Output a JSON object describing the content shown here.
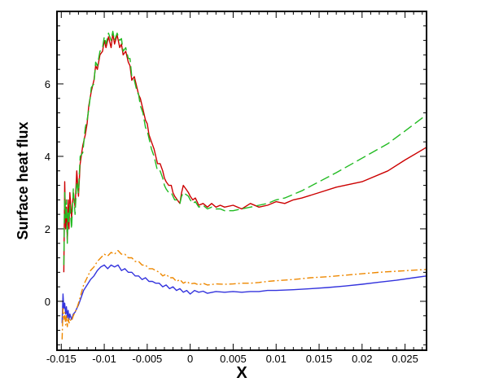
{
  "chart_data": {
    "type": "line",
    "title": "",
    "xlabel": "X",
    "ylabel": "Surface heat flux",
    "xlim": [
      -0.0155,
      0.0275
    ],
    "ylim": [
      -1.35,
      8.0
    ],
    "x_ticks": [
      -0.015,
      -0.01,
      -0.005,
      0,
      0.005,
      0.01,
      0.015,
      0.02,
      0.025
    ],
    "x_tick_labels": [
      "-0.015",
      "-0.01",
      "-0.005",
      "0",
      "0.005",
      "0.01",
      "0.015",
      "0.02",
      "0.025"
    ],
    "y_ticks": [
      0,
      2,
      4,
      6
    ],
    "y_tick_labels": [
      "0",
      "2",
      "4",
      "6"
    ],
    "grid": false,
    "legend": "none",
    "series": [
      {
        "color": "#cc0000",
        "dash": "solid",
        "x": [
          -0.0147,
          -0.0146,
          -0.0145,
          -0.0144,
          -0.0143,
          -0.0142,
          -0.0141,
          -0.014,
          -0.0138,
          -0.0136,
          -0.0134,
          -0.0132,
          -0.013,
          -0.0128,
          -0.0125,
          -0.0122,
          -0.012,
          -0.0118,
          -0.0115,
          -0.0112,
          -0.011,
          -0.0108,
          -0.0105,
          -0.0102,
          -0.01,
          -0.0098,
          -0.0095,
          -0.0092,
          -0.009,
          -0.0088,
          -0.0085,
          -0.0082,
          -0.008,
          -0.0078,
          -0.0075,
          -0.0072,
          -0.007,
          -0.0068,
          -0.0065,
          -0.0062,
          -0.006,
          -0.0058,
          -0.0055,
          -0.0052,
          -0.005,
          -0.0048,
          -0.0045,
          -0.0042,
          -0.004,
          -0.0038,
          -0.0035,
          -0.0032,
          -0.003,
          -0.0028,
          -0.0025,
          -0.0022,
          -0.002,
          -0.0018,
          -0.0015,
          -0.0012,
          -0.001,
          -0.0008,
          -0.0005,
          -0.0002,
          0,
          0.0003,
          0.0006,
          0.001,
          0.0015,
          0.002,
          0.0025,
          0.003,
          0.0035,
          0.004,
          0.005,
          0.006,
          0.007,
          0.008,
          0.009,
          0.01,
          0.011,
          0.012,
          0.013,
          0.015,
          0.017,
          0.02,
          0.023,
          0.025,
          0.0275
        ],
        "y": [
          0.8,
          3.3,
          2.0,
          2.6,
          1.7,
          2.8,
          2.0,
          3.0,
          2.3,
          3.0,
          2.6,
          3.6,
          2.9,
          3.8,
          4.3,
          4.6,
          4.9,
          5.4,
          5.8,
          6.1,
          6.5,
          6.4,
          6.8,
          6.9,
          7.2,
          7.0,
          7.3,
          7.0,
          7.4,
          7.1,
          7.35,
          7.0,
          7.1,
          6.8,
          6.9,
          6.6,
          6.5,
          6.1,
          6.2,
          5.9,
          5.7,
          5.6,
          5.3,
          5.0,
          4.9,
          4.6,
          4.4,
          4.2,
          4.0,
          3.8,
          3.8,
          3.6,
          3.4,
          3.3,
          3.2,
          3.2,
          3.0,
          2.9,
          2.8,
          2.7,
          3.0,
          3.2,
          3.1,
          3.0,
          2.9,
          2.8,
          2.85,
          2.65,
          2.7,
          2.6,
          2.7,
          2.6,
          2.65,
          2.6,
          2.65,
          2.55,
          2.7,
          2.6,
          2.65,
          2.75,
          2.7,
          2.8,
          2.85,
          3.0,
          3.15,
          3.3,
          3.6,
          3.9,
          4.25
        ]
      },
      {
        "color": "#22bb22",
        "dash": "long-dash",
        "x": [
          -0.0147,
          -0.0146,
          -0.0145,
          -0.0144,
          -0.0143,
          -0.0142,
          -0.0141,
          -0.014,
          -0.0138,
          -0.0136,
          -0.0134,
          -0.0132,
          -0.013,
          -0.0128,
          -0.0125,
          -0.0122,
          -0.012,
          -0.0118,
          -0.0115,
          -0.0112,
          -0.011,
          -0.0108,
          -0.0105,
          -0.0102,
          -0.01,
          -0.0098,
          -0.0095,
          -0.0092,
          -0.009,
          -0.0088,
          -0.0085,
          -0.0082,
          -0.008,
          -0.0078,
          -0.0075,
          -0.0072,
          -0.007,
          -0.0068,
          -0.0065,
          -0.0062,
          -0.006,
          -0.0058,
          -0.0055,
          -0.0052,
          -0.005,
          -0.0048,
          -0.0045,
          -0.0042,
          -0.004,
          -0.0038,
          -0.0035,
          -0.0032,
          -0.003,
          -0.0028,
          -0.0025,
          -0.0022,
          -0.002,
          -0.0018,
          -0.0015,
          -0.0012,
          -0.001,
          -0.0008,
          -0.0005,
          -0.0002,
          0,
          0.0003,
          0.0006,
          0.001,
          0.0015,
          0.002,
          0.0025,
          0.003,
          0.0035,
          0.004,
          0.005,
          0.006,
          0.007,
          0.008,
          0.009,
          0.01,
          0.011,
          0.012,
          0.013,
          0.015,
          0.017,
          0.02,
          0.023,
          0.025,
          0.0275
        ],
        "y": [
          1.0,
          3.0,
          2.3,
          2.8,
          1.6,
          2.5,
          2.2,
          2.7,
          2.0,
          3.1,
          2.4,
          3.3,
          3.0,
          4.0,
          4.1,
          4.8,
          5.0,
          5.3,
          5.9,
          6.0,
          6.6,
          6.5,
          6.9,
          7.0,
          7.3,
          7.1,
          7.4,
          7.2,
          7.45,
          7.2,
          7.4,
          7.2,
          7.25,
          6.9,
          7.0,
          6.7,
          6.7,
          6.2,
          6.1,
          5.8,
          5.7,
          5.4,
          5.2,
          4.8,
          4.7,
          4.5,
          4.2,
          4.0,
          3.8,
          3.6,
          3.6,
          3.4,
          3.2,
          3.1,
          3.0,
          3.0,
          2.9,
          2.8,
          2.8,
          2.7,
          2.9,
          3.0,
          2.95,
          2.9,
          2.8,
          2.7,
          2.75,
          2.6,
          2.65,
          2.55,
          2.6,
          2.55,
          2.55,
          2.5,
          2.5,
          2.55,
          2.6,
          2.65,
          2.7,
          2.8,
          2.85,
          2.95,
          3.05,
          3.3,
          3.55,
          3.95,
          4.35,
          4.7,
          5.15
        ]
      },
      {
        "color": "#3333dd",
        "dash": "solid",
        "x": [
          -0.0149,
          -0.0148,
          -0.0147,
          -0.0146,
          -0.0145,
          -0.0144,
          -0.0143,
          -0.0142,
          -0.0141,
          -0.014,
          -0.0138,
          -0.0136,
          -0.0134,
          -0.0132,
          -0.013,
          -0.0127,
          -0.0124,
          -0.012,
          -0.0116,
          -0.0112,
          -0.0108,
          -0.0104,
          -0.01,
          -0.0096,
          -0.0092,
          -0.0088,
          -0.0084,
          -0.008,
          -0.0076,
          -0.0072,
          -0.0068,
          -0.0064,
          -0.006,
          -0.0056,
          -0.0052,
          -0.0048,
          -0.0044,
          -0.004,
          -0.0036,
          -0.0032,
          -0.0028,
          -0.0024,
          -0.002,
          -0.0016,
          -0.0012,
          -0.0008,
          -0.0004,
          0,
          0.0005,
          0.001,
          0.0015,
          0.002,
          0.003,
          0.004,
          0.005,
          0.006,
          0.007,
          0.008,
          0.009,
          0.01,
          0.012,
          0.014,
          0.016,
          0.018,
          0.02,
          0.022,
          0.024,
          0.026,
          0.0275
        ],
        "y": [
          -0.6,
          0.2,
          -0.2,
          -0.05,
          -0.35,
          -0.15,
          -0.45,
          -0.25,
          -0.5,
          -0.35,
          -0.5,
          -0.35,
          -0.3,
          -0.2,
          -0.1,
          0.1,
          0.3,
          0.45,
          0.6,
          0.7,
          0.85,
          0.95,
          1.0,
          0.9,
          1.0,
          0.95,
          1.0,
          0.85,
          0.9,
          0.8,
          0.8,
          0.7,
          0.7,
          0.6,
          0.65,
          0.55,
          0.55,
          0.5,
          0.5,
          0.4,
          0.45,
          0.35,
          0.4,
          0.3,
          0.35,
          0.25,
          0.3,
          0.2,
          0.3,
          0.25,
          0.28,
          0.22,
          0.27,
          0.25,
          0.27,
          0.25,
          0.27,
          0.27,
          0.3,
          0.3,
          0.32,
          0.35,
          0.38,
          0.42,
          0.47,
          0.53,
          0.58,
          0.65,
          0.7
        ]
      },
      {
        "color": "#ee8800",
        "dash": "dash-dot",
        "x": [
          -0.0149,
          -0.0148,
          -0.0147,
          -0.0146,
          -0.0145,
          -0.0144,
          -0.0143,
          -0.0142,
          -0.0141,
          -0.014,
          -0.0138,
          -0.0136,
          -0.0134,
          -0.0132,
          -0.013,
          -0.0127,
          -0.0124,
          -0.012,
          -0.0116,
          -0.0112,
          -0.0108,
          -0.0104,
          -0.01,
          -0.0096,
          -0.0092,
          -0.0088,
          -0.0084,
          -0.008,
          -0.0076,
          -0.0072,
          -0.0068,
          -0.0064,
          -0.006,
          -0.0056,
          -0.0052,
          -0.0048,
          -0.0044,
          -0.004,
          -0.0036,
          -0.0032,
          -0.0028,
          -0.0024,
          -0.002,
          -0.0016,
          -0.0012,
          -0.0008,
          -0.0004,
          0,
          0.0005,
          0.001,
          0.0015,
          0.002,
          0.003,
          0.004,
          0.005,
          0.006,
          0.007,
          0.008,
          0.009,
          0.01,
          0.012,
          0.014,
          0.016,
          0.018,
          0.02,
          0.022,
          0.024,
          0.026,
          0.0275
        ],
        "y": [
          -1.05,
          -0.2,
          -0.5,
          -0.3,
          -0.65,
          -0.4,
          -0.7,
          -0.45,
          -0.6,
          -0.5,
          -0.55,
          -0.4,
          -0.3,
          -0.2,
          -0.05,
          0.2,
          0.45,
          0.65,
          0.85,
          0.95,
          1.1,
          1.2,
          1.3,
          1.25,
          1.35,
          1.3,
          1.4,
          1.3,
          1.3,
          1.2,
          1.2,
          1.1,
          1.1,
          1.0,
          1.0,
          0.9,
          0.9,
          0.85,
          0.8,
          0.7,
          0.75,
          0.65,
          0.65,
          0.55,
          0.6,
          0.5,
          0.55,
          0.48,
          0.5,
          0.45,
          0.5,
          0.45,
          0.48,
          0.47,
          0.48,
          0.5,
          0.5,
          0.52,
          0.55,
          0.57,
          0.6,
          0.65,
          0.68,
          0.72,
          0.76,
          0.8,
          0.83,
          0.86,
          0.88
        ]
      }
    ]
  }
}
